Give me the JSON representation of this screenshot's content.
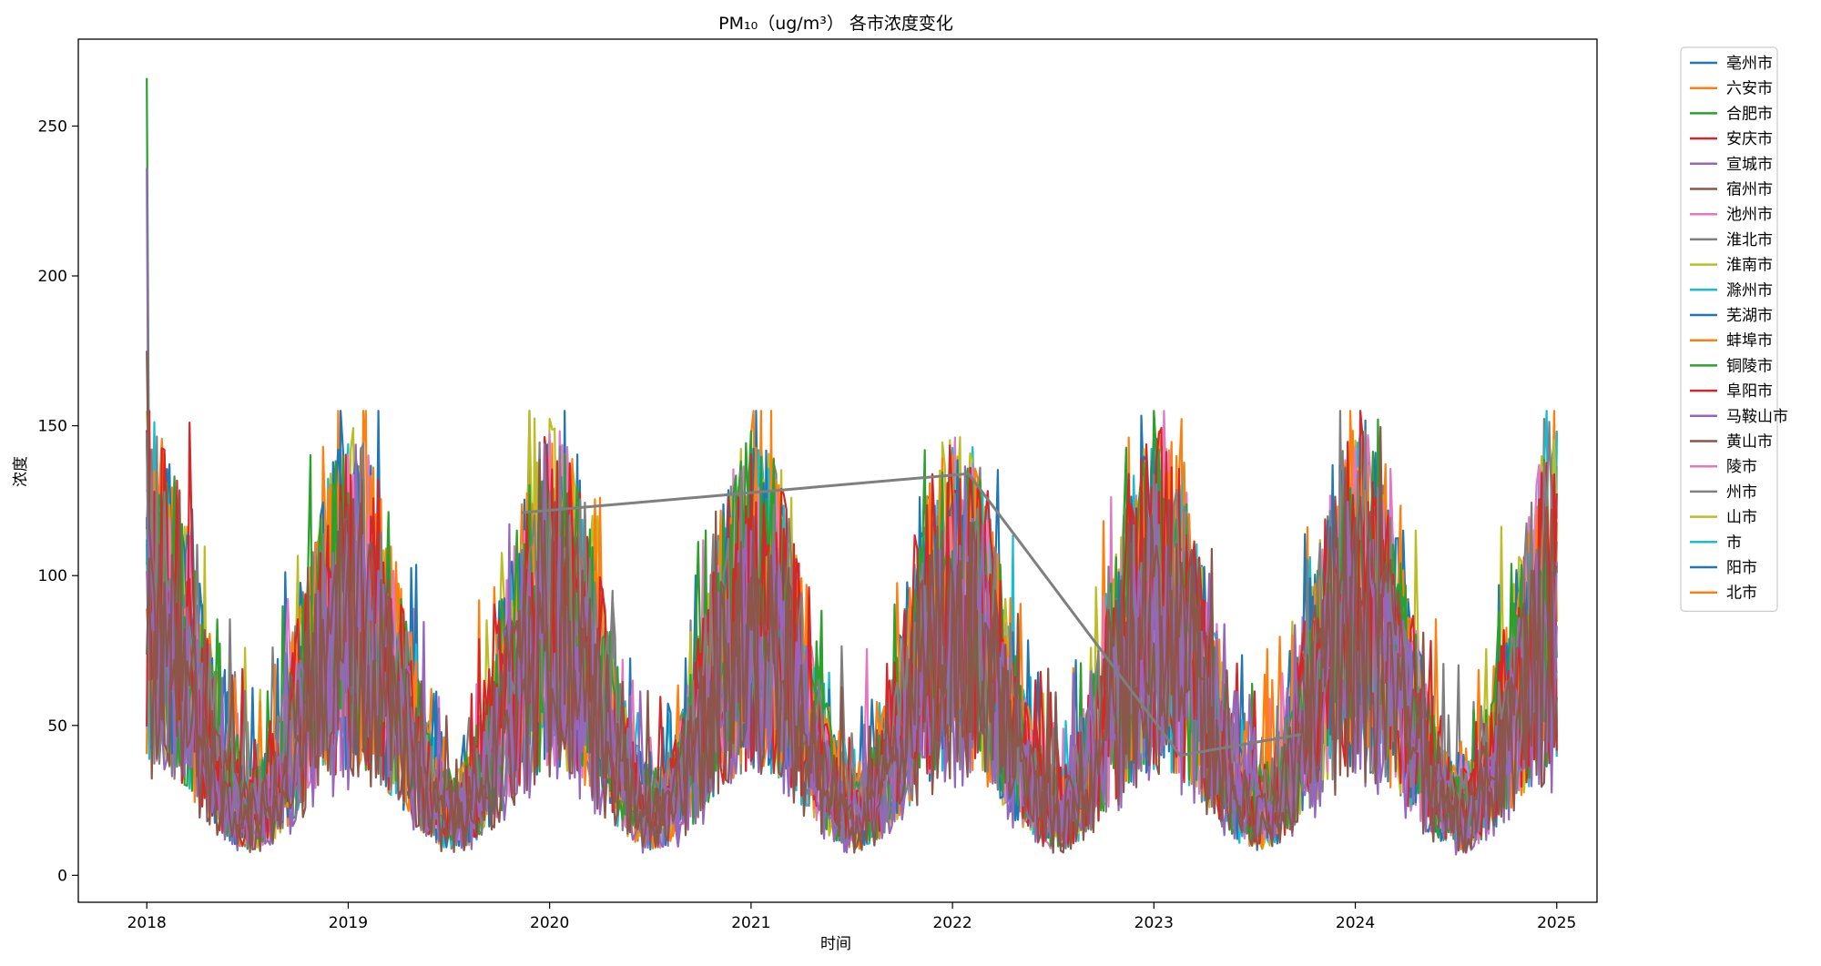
{
  "chart_data": {
    "type": "line",
    "title": "PM₁₀（ug/m³） 各市浓度变化",
    "xlabel": "时间",
    "ylabel": "浓度",
    "xlim": [
      2017.66,
      2025.2
    ],
    "ylim": [
      -9,
      279
    ],
    "x_ticks": [
      2018,
      2019,
      2020,
      2021,
      2022,
      2023,
      2024,
      2025
    ],
    "y_ticks": [
      0,
      50,
      100,
      150,
      200,
      250
    ],
    "grid": false,
    "legend_position": "outside-right-top",
    "series": [
      {
        "name": "亳州市",
        "color": "#1f77b4"
      },
      {
        "name": "六安市",
        "color": "#ff7f0e"
      },
      {
        "name": "合肥市",
        "color": "#2ca02c"
      },
      {
        "name": "安庆市",
        "color": "#d62728"
      },
      {
        "name": "宣城市",
        "color": "#9467bd"
      },
      {
        "name": "宿州市",
        "color": "#8c564b"
      },
      {
        "name": "池州市",
        "color": "#e377c2"
      },
      {
        "name": "淮北市",
        "color": "#7f7f7f"
      },
      {
        "name": "淮南市",
        "color": "#bcbd22"
      },
      {
        "name": "滁州市",
        "color": "#17becf"
      },
      {
        "name": "芜湖市",
        "color": "#1f77b4"
      },
      {
        "name": "蚌埠市",
        "color": "#ff7f0e"
      },
      {
        "name": "铜陵市",
        "color": "#2ca02c"
      },
      {
        "name": "阜阳市",
        "color": "#d62728"
      },
      {
        "name": "马鞍山市",
        "color": "#9467bd"
      },
      {
        "name": "黄山市",
        "color": "#8c564b"
      },
      {
        "name": "陵市",
        "color": "#e377c2"
      },
      {
        "name": "州市",
        "color": "#7f7f7f"
      },
      {
        "name": "山市",
        "color": "#bcbd22"
      },
      {
        "name": "市",
        "color": "#17becf"
      },
      {
        "name": "阳市",
        "color": "#1f77b4"
      },
      {
        "name": "北市",
        "color": "#ff7f0e"
      }
    ],
    "gray_trend_line": {
      "x": [
        2019.86,
        2022.08,
        2023.13,
        2023.73
      ],
      "y": [
        121,
        134,
        40,
        47
      ]
    }
  }
}
